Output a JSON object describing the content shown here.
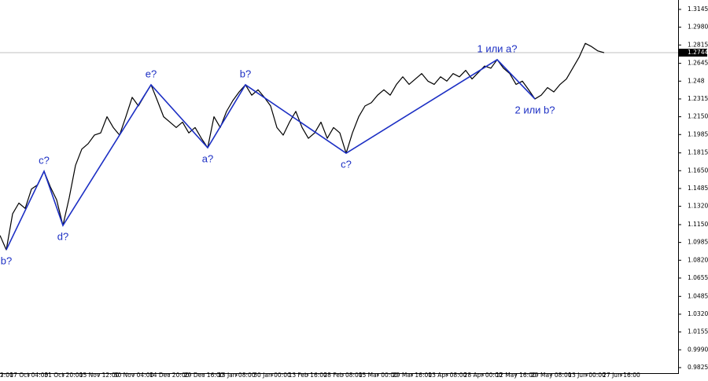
{
  "chart_data": {
    "type": "line",
    "series": [
      {
        "color": "#000000",
        "values": [
          1.105,
          1.0917,
          1.125,
          1.135,
          1.13,
          1.148,
          1.152,
          1.1645,
          1.15,
          1.138,
          1.1142,
          1.14,
          1.17,
          1.185,
          1.19,
          1.198,
          1.2,
          1.215,
          1.205,
          1.198,
          1.215,
          1.233,
          1.225,
          1.235,
          1.2446,
          1.23,
          1.215,
          1.21,
          1.205,
          1.21,
          1.2,
          1.205,
          1.195,
          1.1863,
          1.215,
          1.205,
          1.22,
          1.23,
          1.238,
          1.2446,
          1.235,
          1.24,
          1.233,
          1.225,
          1.205,
          1.198,
          1.21,
          1.22,
          1.205,
          1.195,
          1.2,
          1.21,
          1.195,
          1.205,
          1.2,
          1.1812,
          1.2,
          1.215,
          1.225,
          1.228,
          1.235,
          1.24,
          1.235,
          1.245,
          1.252,
          1.245,
          1.25,
          1.255,
          1.248,
          1.245,
          1.252,
          1.248,
          1.255,
          1.252,
          1.258,
          1.25,
          1.256,
          1.262,
          1.26,
          1.2679,
          1.26,
          1.255,
          1.245,
          1.248,
          1.24,
          1.2315,
          1.235,
          1.242,
          1.238,
          1.245,
          1.25,
          1.26,
          1.27,
          1.283,
          1.28,
          1.276,
          1.2744
        ]
      }
    ],
    "wave_line": {
      "color": "#1c2fc4",
      "x": [
        1,
        7,
        10,
        24,
        33,
        39,
        55,
        79,
        85
      ],
      "values": [
        1.0917,
        1.1645,
        1.1142,
        1.2446,
        1.1863,
        1.2446,
        1.1812,
        1.2679,
        1.2315
      ],
      "labels": [
        "b?",
        "c?",
        "d?",
        "e?",
        "a?",
        "b?",
        "c?",
        "1 или a?",
        "2 или b?"
      ]
    },
    "current_price": {
      "value": 1.2744,
      "label": "1.2744"
    },
    "xlim": [
      0,
      107.75
    ],
    "ylim": [
      0.981,
      1.3232
    ],
    "yticks": [
      1.3145,
      {
        "value": 1.298,
        "label": "1.2980"
      },
      1.2815,
      1.2645,
      1.248,
      1.2315,
      {
        "value": 1.215,
        "label": "1.2150"
      },
      1.1985,
      1.1815,
      {
        "value": 1.165,
        "label": "1.1650"
      },
      1.1485,
      {
        "value": 1.132,
        "label": "1.1320"
      },
      {
        "value": 1.115,
        "label": "1.1150"
      },
      1.0985,
      {
        "value": 1.082,
        "label": "1.0820"
      },
      1.0655,
      1.0485,
      {
        "value": 1.032,
        "label": "1.0320"
      },
      1.0155,
      {
        "value": 0.999,
        "label": "0.9990"
      },
      0.9825
    ],
    "xticks": [
      {
        "value": 0.375,
        "label": "2:00"
      },
      {
        "value": 4.6,
        "label": "17 Oct 04:00"
      },
      {
        "value": 10.1,
        "label": "31 Oct 20:00"
      },
      {
        "value": 15.75,
        "label": "15 Nov 12:00"
      },
      {
        "value": 21.25,
        "label": "30 Nov 04:00"
      },
      {
        "value": 26.9,
        "label": "14 Dec 20:00"
      },
      {
        "value": 32.4,
        "label": "29 Dec 16:00"
      },
      {
        "value": 37.6,
        "label": "13 Jan 08:00"
      },
      {
        "value": 43.25,
        "label": "30 Jan 00:00"
      },
      {
        "value": 48.9,
        "label": "13 Feb 16:00"
      },
      {
        "value": 54.5,
        "label": "28 Feb 08:00"
      },
      {
        "value": 60.1,
        "label": "15 Mar 00:00"
      },
      {
        "value": 65.5,
        "label": "29 Mar 16:00"
      },
      {
        "value": 71.1,
        "label": "13 Apr 08:00"
      },
      {
        "value": 76.75,
        "label": "28 Apr 00:00"
      },
      {
        "value": 82,
        "label": "12 May 16:00"
      },
      {
        "value": 87.6,
        "label": "29 May 08:00"
      },
      {
        "value": 93.25,
        "label": "13 Jun 00:00"
      },
      {
        "value": 98.75,
        "label": "27 Jun 16:00"
      }
    ]
  }
}
